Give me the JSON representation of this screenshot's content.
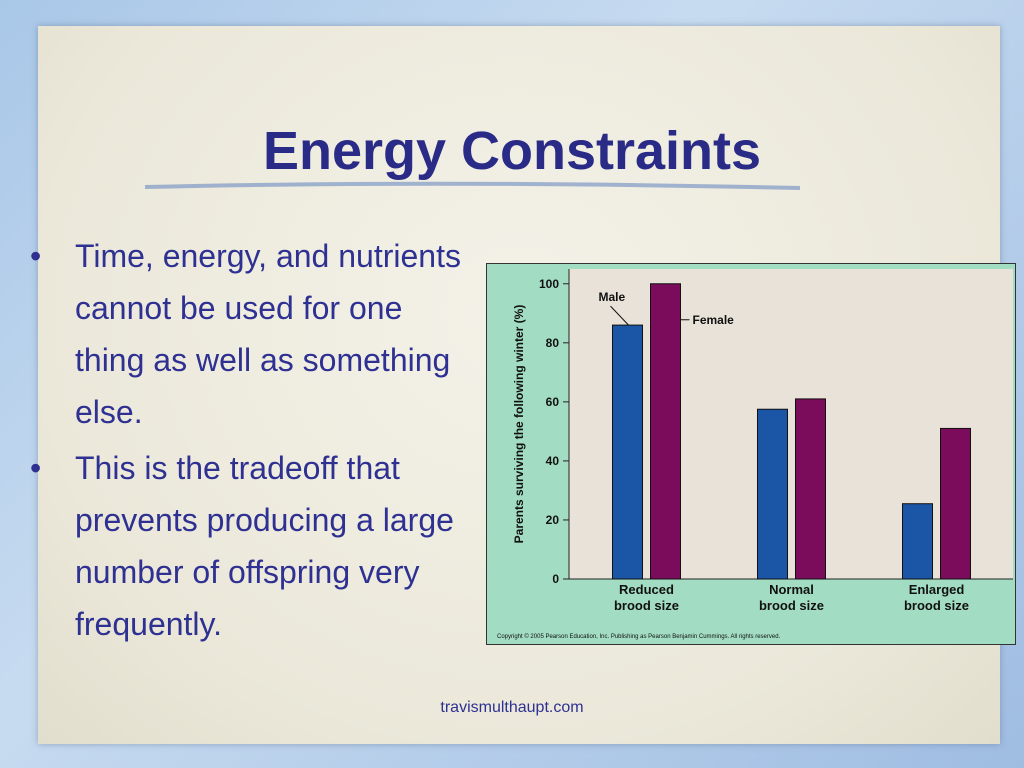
{
  "slide": {
    "title": "Energy Constraints",
    "bullets": [
      "Time, energy, and nutrients cannot be used for one thing as well as something else.",
      "This is the tradeoff that prevents producing a large number of offspring very frequently."
    ],
    "footer": "travismulthaupt.com"
  },
  "chart_data": {
    "type": "bar",
    "y_label": "Parents surviving the following winter (%)",
    "categories": [
      "Reduced brood size",
      "Normal brood size",
      "Enlarged brood size"
    ],
    "series": [
      {
        "name": "Male",
        "color": "#1a55a6",
        "values": [
          86,
          57.5,
          25.5
        ]
      },
      {
        "name": "Female",
        "color": "#7b0b5b",
        "values": [
          100,
          61,
          51
        ]
      }
    ],
    "ylim": [
      0,
      105
    ],
    "yticks": [
      0,
      20,
      40,
      60,
      80,
      100
    ],
    "copyright": "Copyright © 2005 Pearson Education, Inc. Publishing as Pearson Benjamin Cummings. All rights reserved."
  }
}
